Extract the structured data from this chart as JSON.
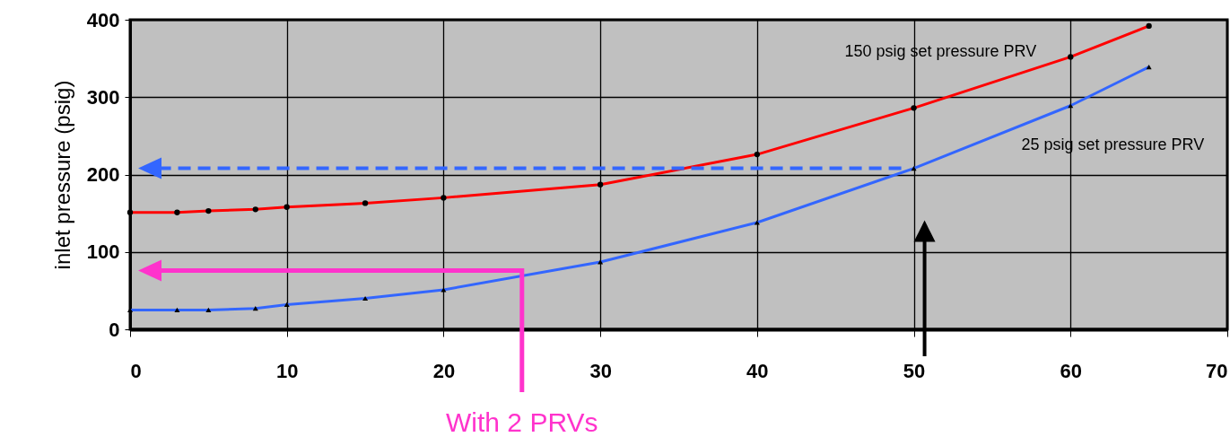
{
  "chart_data": {
    "type": "line",
    "ylabel": "inlet pressure (psig)",
    "x": [
      0,
      3,
      5,
      8,
      10,
      15,
      20,
      30,
      40,
      50,
      60,
      65
    ],
    "series": [
      {
        "name": "150 psig set pressure PRV",
        "color": "#ff0000",
        "marker": "circle",
        "values": [
          151,
          151,
          153,
          155,
          158,
          163,
          170,
          187,
          226,
          286,
          352,
          392
        ]
      },
      {
        "name": "25 psig set pressure PRV",
        "color": "#3366ff",
        "marker": "triangle",
        "values": [
          25,
          25,
          25,
          27,
          32,
          40,
          51,
          87,
          138,
          208,
          289,
          339
        ]
      }
    ],
    "xlim": [
      0,
      70
    ],
    "xticks": [
      0,
      10,
      20,
      30,
      40,
      50,
      60,
      70
    ],
    "ylim": [
      0,
      400
    ],
    "yticks": [
      0,
      100,
      200,
      300,
      400
    ],
    "grid": true,
    "annotations": [
      "With 2 PRVs"
    ]
  }
}
